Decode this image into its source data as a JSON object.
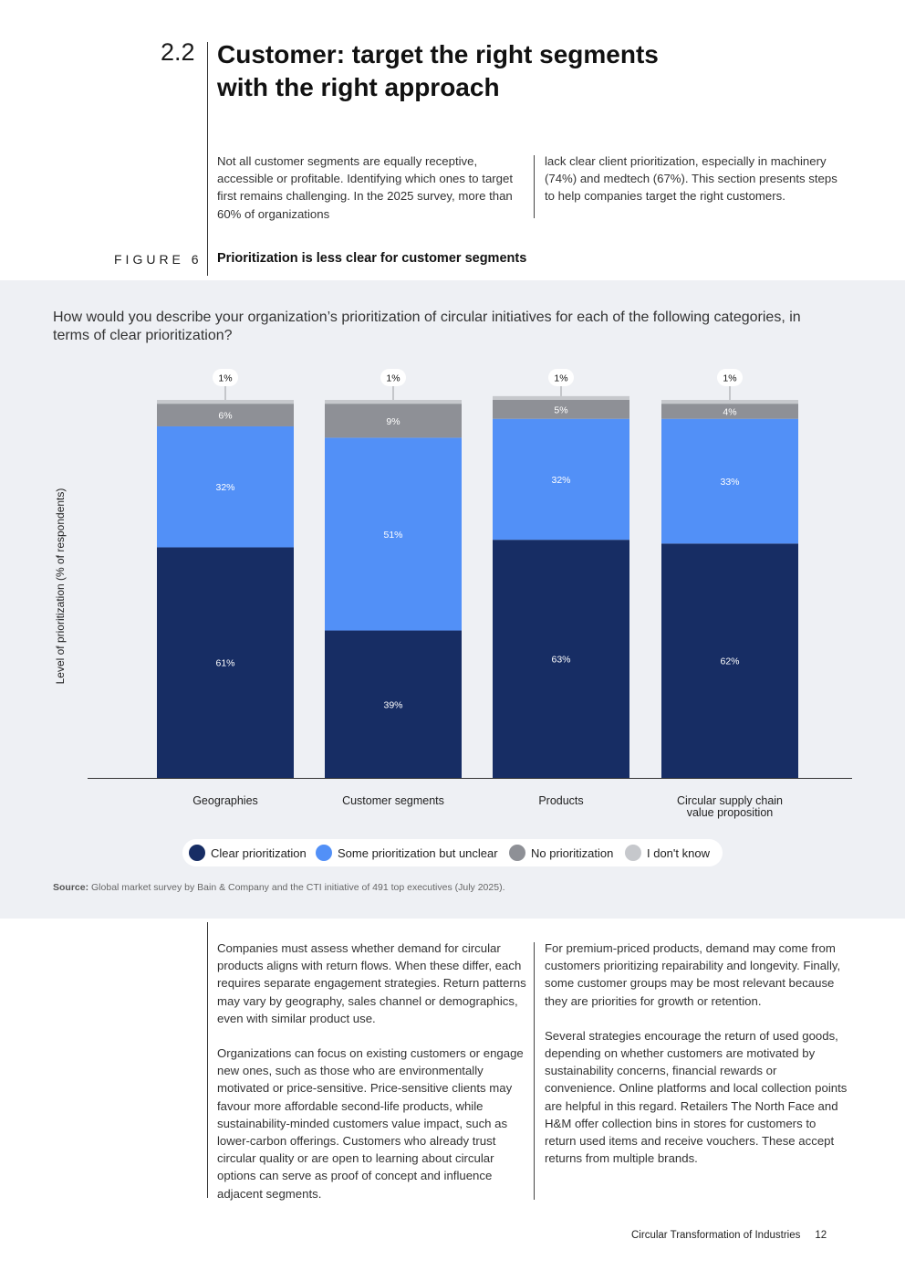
{
  "header": {
    "section_number": "2.2",
    "title_line1": "Customer: target the right segments",
    "title_line2": "with the right approach"
  },
  "intro": {
    "left": "Not all customer segments are equally receptive, accessible or profitable. Identifying which ones to target first remains challenging. In the 2025 survey, more than 60% of organizations",
    "right": "lack clear client prioritization, especially in machinery (74%) and medtech (67%). This section presents steps to help companies target the right customers."
  },
  "figure": {
    "label": "FIGURE 6",
    "title": "Prioritization is less clear for customer segments",
    "question": "How would you describe your organization’s prioritization of circular initiatives for each of the following categories, in terms of clear prioritization?",
    "y_axis_label": "Level of prioritization (% of respondents)",
    "source_label": "Source:",
    "source_text": "Global market survey by Bain & Company and the CTI initiative of 491 top executives (July 2025)."
  },
  "chart_data": {
    "type": "bar",
    "stacked": true,
    "categories": [
      "Geographies",
      "Customer segments",
      "Products",
      "Circular supply chain value proposition"
    ],
    "category_lines": [
      [
        "Geographies"
      ],
      [
        "Customer segments"
      ],
      [
        "Products"
      ],
      [
        "Circular supply chain",
        "value proposition"
      ]
    ],
    "series": [
      {
        "name": "Clear prioritization",
        "color": "#172d64",
        "values": [
          61,
          39,
          63,
          62
        ],
        "labels": [
          "61%",
          "39%",
          "63%",
          "62%"
        ]
      },
      {
        "name": "Some prioritization but unclear",
        "color": "#5290f7",
        "values": [
          32,
          51,
          32,
          33
        ],
        "labels": [
          "32%",
          "51%",
          "32%",
          "33%"
        ]
      },
      {
        "name": "No prioritization",
        "color": "#8e9096",
        "values": [
          6,
          9,
          5,
          4
        ],
        "labels": [
          "6%",
          "9%",
          "5%",
          "4%"
        ]
      },
      {
        "name": "I don't know",
        "color": "#c6c8cc",
        "values": [
          1,
          1,
          1,
          1
        ],
        "labels": [
          "1%",
          "1%",
          "1%",
          "1%"
        ]
      }
    ],
    "title": "Prioritization is less clear for customer segments",
    "xlabel": "",
    "ylabel": "Level of prioritization (% of respondents)",
    "ylim": [
      0,
      100
    ],
    "grid": false,
    "legend_position": "bottom"
  },
  "body": {
    "left": [
      "Companies must assess whether demand for circular products aligns with return flows. When these differ, each requires separate engagement strategies. Return patterns may vary by geography, sales channel or demographics, even with similar product use.",
      "Organizations can focus on existing customers or engage new ones, such as those who are environmentally motivated or price-sensitive. Price-sensitive clients may favour more affordable second-life products, while sustainability-minded customers value impact, such as lower-carbon offerings. Customers who already trust circular quality or are open to learning about circular options can serve as proof of concept and influence adjacent segments."
    ],
    "right": [
      "For premium-priced products, demand may come from customers prioritizing repairability and longevity. Finally, some customer groups may be most relevant because they are priorities for growth or retention.",
      "Several strategies encourage the return of used goods, depending on whether customers are motivated by sustainability concerns, financial rewards or convenience. Online platforms and local collection points are helpful in this regard. Retailers The North Face and H&M offer collection bins in stores for customers to return used items and receive vouchers. These accept returns from multiple brands."
    ]
  },
  "footer": {
    "publication": "Circular Transformation of Industries",
    "page_number": "12"
  }
}
